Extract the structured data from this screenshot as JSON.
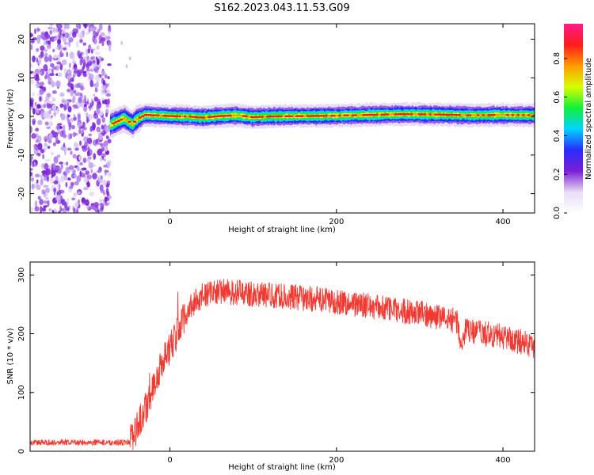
{
  "title": "S162.2023.043.11.53.G09",
  "chart_data": [
    {
      "type": "heatmap",
      "xlabel": "Height of straight line (km)",
      "ylabel": "Frequency (Hz)",
      "xlim": [
        -168,
        438
      ],
      "ylim": [
        -25,
        24
      ],
      "x_ticks": [
        0,
        200,
        400
      ],
      "y_ticks": [
        -20,
        -10,
        0,
        10,
        20
      ],
      "colorbar": {
        "label": "Normalized spectral amplitude",
        "ticks": [
          "0.0",
          "0.2",
          "0.4",
          "0.6",
          "0.8"
        ],
        "range": [
          0,
          0.98
        ],
        "colormap": [
          "#ffffff",
          "#e8dcf7",
          "#7a1fd6",
          "#2a2cff",
          "#00d4ff",
          "#12f03a",
          "#d8ff00",
          "#ff9a00",
          "#ff1b1b",
          "#ff1b8c"
        ]
      },
      "noise_region_x": [
        -168,
        -72
      ],
      "signal_onset_x": -72,
      "signal_frequency_trace": {
        "x": [
          -72,
          -60,
          -55,
          -50,
          -45,
          -40,
          -30,
          -20,
          0,
          20,
          40,
          60,
          80,
          100,
          120,
          160,
          200,
          240,
          280,
          320,
          360,
          400,
          438
        ],
        "y": [
          -2.2,
          -1.0,
          -0.5,
          -1.2,
          -2.0,
          -0.8,
          0.4,
          0.3,
          0.1,
          0.0,
          -0.3,
          0.1,
          0.3,
          -0.2,
          0.0,
          0.1,
          0.2,
          0.4,
          0.6,
          0.5,
          0.3,
          0.4,
          0.3
        ]
      }
    },
    {
      "type": "line",
      "xlabel": "Height of straight line (km)",
      "ylabel": "SNR (10 * v/v)",
      "xlim": [
        -168,
        438
      ],
      "ylim": [
        0,
        322
      ],
      "x_ticks": [
        0,
        200,
        400
      ],
      "y_ticks": [
        0,
        100,
        200,
        300
      ],
      "color": "#f03a32",
      "series_trend": {
        "x": [
          -168,
          -50,
          -45,
          -40,
          -30,
          -25,
          -20,
          -15,
          -10,
          -5,
          0,
          10,
          20,
          30,
          40,
          60,
          100,
          150,
          200,
          250,
          300,
          345,
          350,
          355,
          400,
          438
        ],
        "y": [
          15,
          15,
          20,
          40,
          70,
          90,
          110,
          125,
          150,
          165,
          175,
          205,
          235,
          255,
          265,
          272,
          268,
          262,
          255,
          245,
          235,
          222,
          180,
          205,
          195,
          180
        ]
      }
    }
  ]
}
